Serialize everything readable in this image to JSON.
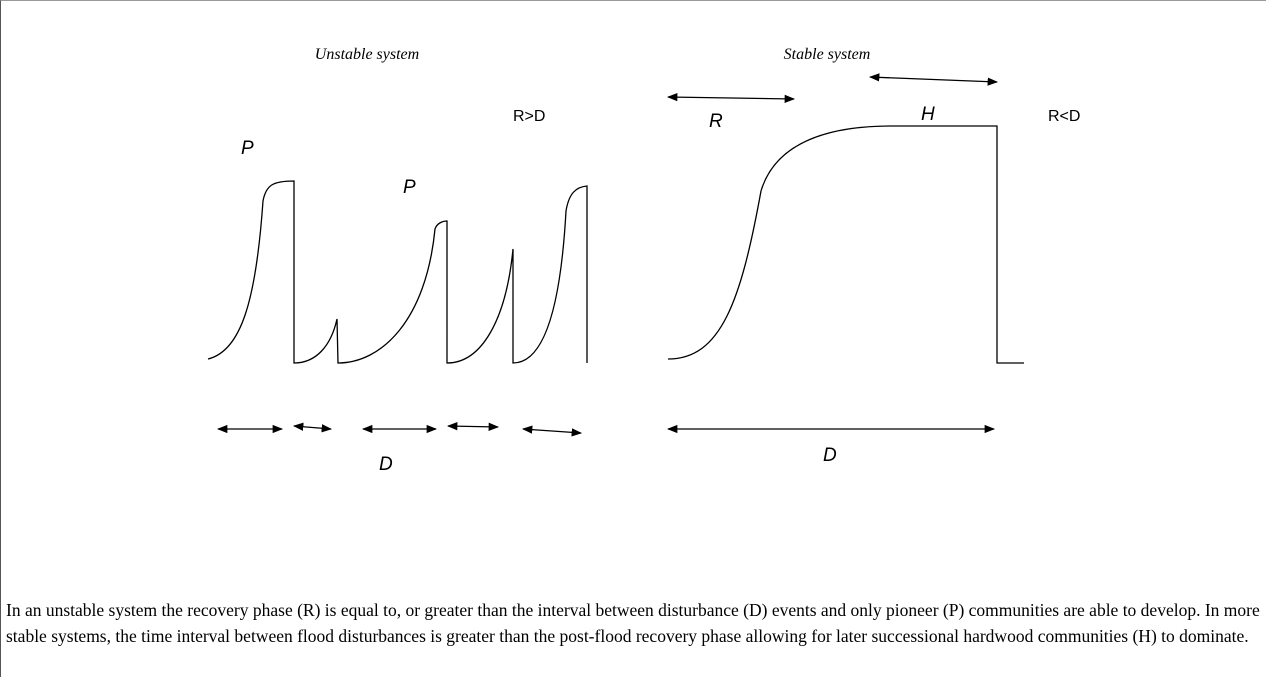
{
  "diagram": {
    "unstable_title": "Unstable system",
    "stable_title": "Stable system",
    "unstable_relation": "R>D",
    "stable_relation": "R<D",
    "labels": {
      "p1": "P",
      "p2": "P",
      "r": "R",
      "h": "H",
      "d1": "D",
      "d2": "D"
    }
  },
  "caption": "In an unstable system the recovery phase (R) is equal to, or greater than the interval between disturbance (D) events and only pioneer (P) communities are able to develop. In more stable systems, the time interval between flood disturbances is greater than the post-flood recovery phase allowing for later successional hardwood communities (H) to dominate."
}
